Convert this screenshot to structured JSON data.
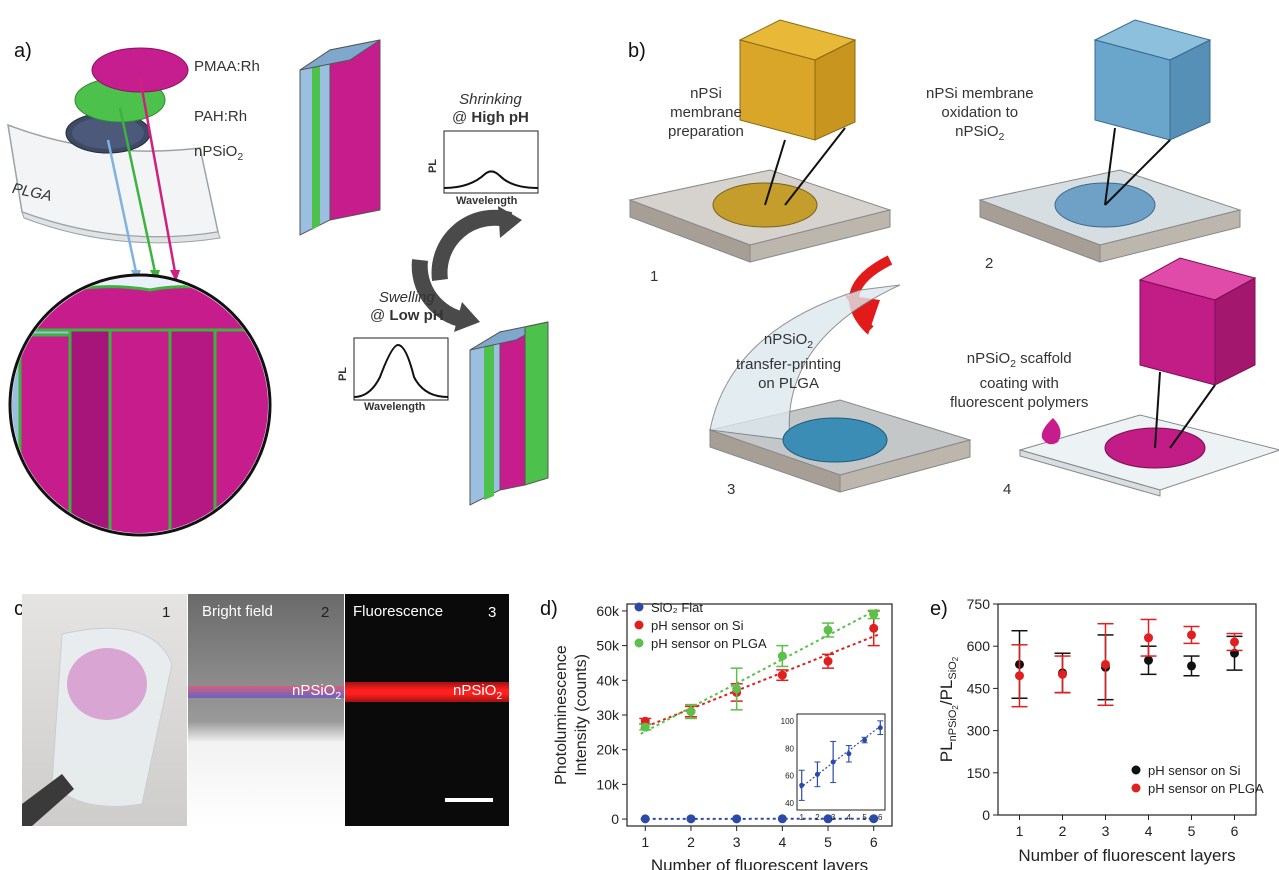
{
  "panel_a": {
    "label": "a)",
    "layers": {
      "top": "PMAA:Rh",
      "middle": "PAH:Rh",
      "bottom_main": "nPSiO",
      "bottom_sub": "2",
      "substrate": "PLGA"
    },
    "shrinking": {
      "line1": "Shrinking",
      "line2_pre": "@ ",
      "line2_bold": "High pH"
    },
    "swelling": {
      "line1": "Swelling",
      "line2_pre": "@ ",
      "line2_bold": "Low pH"
    },
    "plot_ylabel": "PL",
    "plot_xlabel": "Wavelength"
  },
  "panel_b": {
    "label": "b)",
    "step1": {
      "num": "1",
      "text": [
        "nPSi",
        "membrane",
        "preparation"
      ]
    },
    "step2": {
      "num": "2",
      "text": [
        "nPSi membrane",
        "oxidation to"
      ],
      "sub_main": "nPSiO",
      "sub_sub": "2"
    },
    "step3": {
      "num": "3",
      "head_main": "nPSiO",
      "head_sub": "2",
      "text": [
        "transfer-printing",
        "on PLGA"
      ]
    },
    "step4": {
      "num": "4",
      "head_main": "nPSiO",
      "head_sub": "2",
      "head_rest": " scaffold",
      "text": [
        "coating with",
        "fluorescent polymers"
      ]
    }
  },
  "panel_c": {
    "label": "c)",
    "p1": "1",
    "p2": "2",
    "p3": "3",
    "bright": "Bright field",
    "fluor": "Fluorescence",
    "tag_main": "nPSiO",
    "tag_sub": "2"
  },
  "panel_d": {
    "label": "d)",
    "legend": [
      "SiO₂ Flat",
      "pH sensor on Si",
      "pH sensor on PLGA"
    ],
    "ylabel_line1": "Photoluminescence",
    "ylabel_line2": "Intensity (counts)",
    "xlabel": "Number of fluorescent layers",
    "yticks": [
      "0",
      "10k",
      "20k",
      "30k",
      "40k",
      "50k",
      "60k"
    ],
    "xticks": [
      "1",
      "2",
      "3",
      "4",
      "5",
      "6"
    ],
    "inset_yticks": [
      "40",
      "60",
      "80",
      "100"
    ],
    "inset_xticks": [
      "1",
      "2",
      "3",
      "4",
      "5",
      "6"
    ]
  },
  "panel_e": {
    "label": "e)",
    "ylabel_main": "PL",
    "xlabel": "Number of fluorescent layers",
    "yticks": [
      "0",
      "150",
      "300",
      "450",
      "600",
      "750"
    ],
    "xticks": [
      "1",
      "2",
      "3",
      "4",
      "5",
      "6"
    ],
    "legend": [
      "pH sensor on Si",
      "pH sensor on PLGA"
    ]
  },
  "chart_data": [
    {
      "type": "scatter",
      "xlabel": "Number of fluorescent layers",
      "ylabel": "Photoluminescence Intensity (counts)",
      "ylim": [
        -2000,
        62000
      ],
      "xlim": [
        0.6,
        6.4
      ],
      "x": [
        1,
        2,
        3,
        4,
        5,
        6
      ],
      "series": [
        {
          "name": "SiO₂ Flat",
          "color": "#2b4aa8",
          "values": [
            53,
            61,
            70,
            76,
            86,
            95
          ],
          "err": [
            0,
            0,
            0,
            0,
            0,
            0
          ]
        },
        {
          "name": "pH sensor on Si",
          "color": "#e02020",
          "values": [
            28200,
            31000,
            36500,
            41500,
            45500,
            55000
          ],
          "err": [
            800,
            1500,
            2500,
            1500,
            2000,
            5000
          ]
        },
        {
          "name": "pH sensor on PLGA",
          "color": "#5cc04a",
          "values": [
            26500,
            31000,
            37500,
            47000,
            54500,
            59000
          ],
          "err": [
            800,
            2000,
            6000,
            3000,
            2000,
            1200
          ]
        }
      ],
      "inset": {
        "ylim": [
          35,
          105
        ],
        "xlim": [
          0.7,
          6.3
        ],
        "x": [
          1,
          2,
          3,
          4,
          5,
          6
        ],
        "values": [
          53,
          61,
          70,
          76,
          86,
          95
        ],
        "err": [
          11,
          9,
          15,
          6,
          2,
          5
        ],
        "color": "#2b4aa8"
      }
    },
    {
      "type": "scatter",
      "xlabel": "Number of fluorescent layers",
      "ylabel": "PL nPSiO2 / PL SiO2",
      "ylim": [
        0,
        750
      ],
      "xlim": [
        0.5,
        6.5
      ],
      "x": [
        1,
        2,
        3,
        4,
        5,
        6
      ],
      "series": [
        {
          "name": "pH sensor on Si",
          "color": "#111111",
          "values": [
            535,
            505,
            525,
            550,
            530,
            575
          ],
          "err": [
            120,
            70,
            115,
            50,
            35,
            60
          ]
        },
        {
          "name": "pH sensor on PLGA",
          "color": "#e02020",
          "values": [
            495,
            500,
            535,
            630,
            640,
            615
          ],
          "err": [
            110,
            65,
            145,
            65,
            30,
            30
          ]
        }
      ]
    }
  ]
}
